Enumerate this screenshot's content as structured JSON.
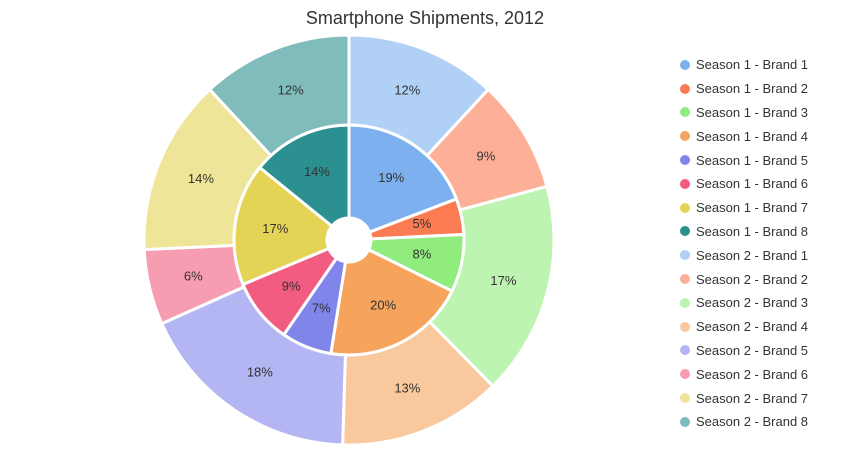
{
  "chart_data": {
    "type": "pie",
    "title": "Smartphone Shipments, 2012",
    "legend_position": "right",
    "rings": [
      {
        "name": "Season 1",
        "slices": [
          {
            "label": "Season 1 - Brand 1",
            "value": 19,
            "text": "19%",
            "color": "#7cb0ef"
          },
          {
            "label": "Season 1 - Brand 2",
            "value": 5,
            "text": "5%",
            "color": "#fb7c52"
          },
          {
            "label": "Season 1 - Brand 3",
            "value": 8,
            "text": "8%",
            "color": "#90ec7d"
          },
          {
            "label": "Season 1 - Brand 4",
            "value": 20,
            "text": "20%",
            "color": "#f6a35c"
          },
          {
            "label": "Season 1 - Brand 5",
            "value": 7,
            "text": "7%",
            "color": "#8085e9"
          },
          {
            "label": "Season 1 - Brand 6",
            "value": 9,
            "text": "9%",
            "color": "#f15c80"
          },
          {
            "label": "Season 1 - Brand 7",
            "value": 17,
            "text": "17%",
            "color": "#e4d354"
          },
          {
            "label": "Season 1 - Brand 8",
            "value": 14,
            "text": "14%",
            "color": "#2b908f"
          }
        ]
      },
      {
        "name": "Season 2",
        "slices": [
          {
            "label": "Season 2 - Brand 1",
            "value": 12,
            "text": "12%",
            "color": "#b0d0f6"
          },
          {
            "label": "Season 2 - Brand 2",
            "value": 9,
            "text": "9%",
            "color": "#fdb097"
          },
          {
            "label": "Season 2 - Brand 3",
            "value": 17,
            "text": "17%",
            "color": "#bdf4b1"
          },
          {
            "label": "Season 2 - Brand 4",
            "value": 13,
            "text": "13%",
            "color": "#fac89d"
          },
          {
            "label": "Season 2 - Brand 5",
            "value": 18,
            "text": "18%",
            "color": "#b3b6f2"
          },
          {
            "label": "Season 2 - Brand 6",
            "value": 6,
            "text": "6%",
            "color": "#f69db2"
          },
          {
            "label": "Season 2 - Brand 7",
            "value": 14,
            "text": "14%",
            "color": "#efe598"
          },
          {
            "label": "Season 2 - Brand 8",
            "value": 12,
            "text": "12%",
            "color": "#80bcbc"
          }
        ]
      }
    ]
  }
}
